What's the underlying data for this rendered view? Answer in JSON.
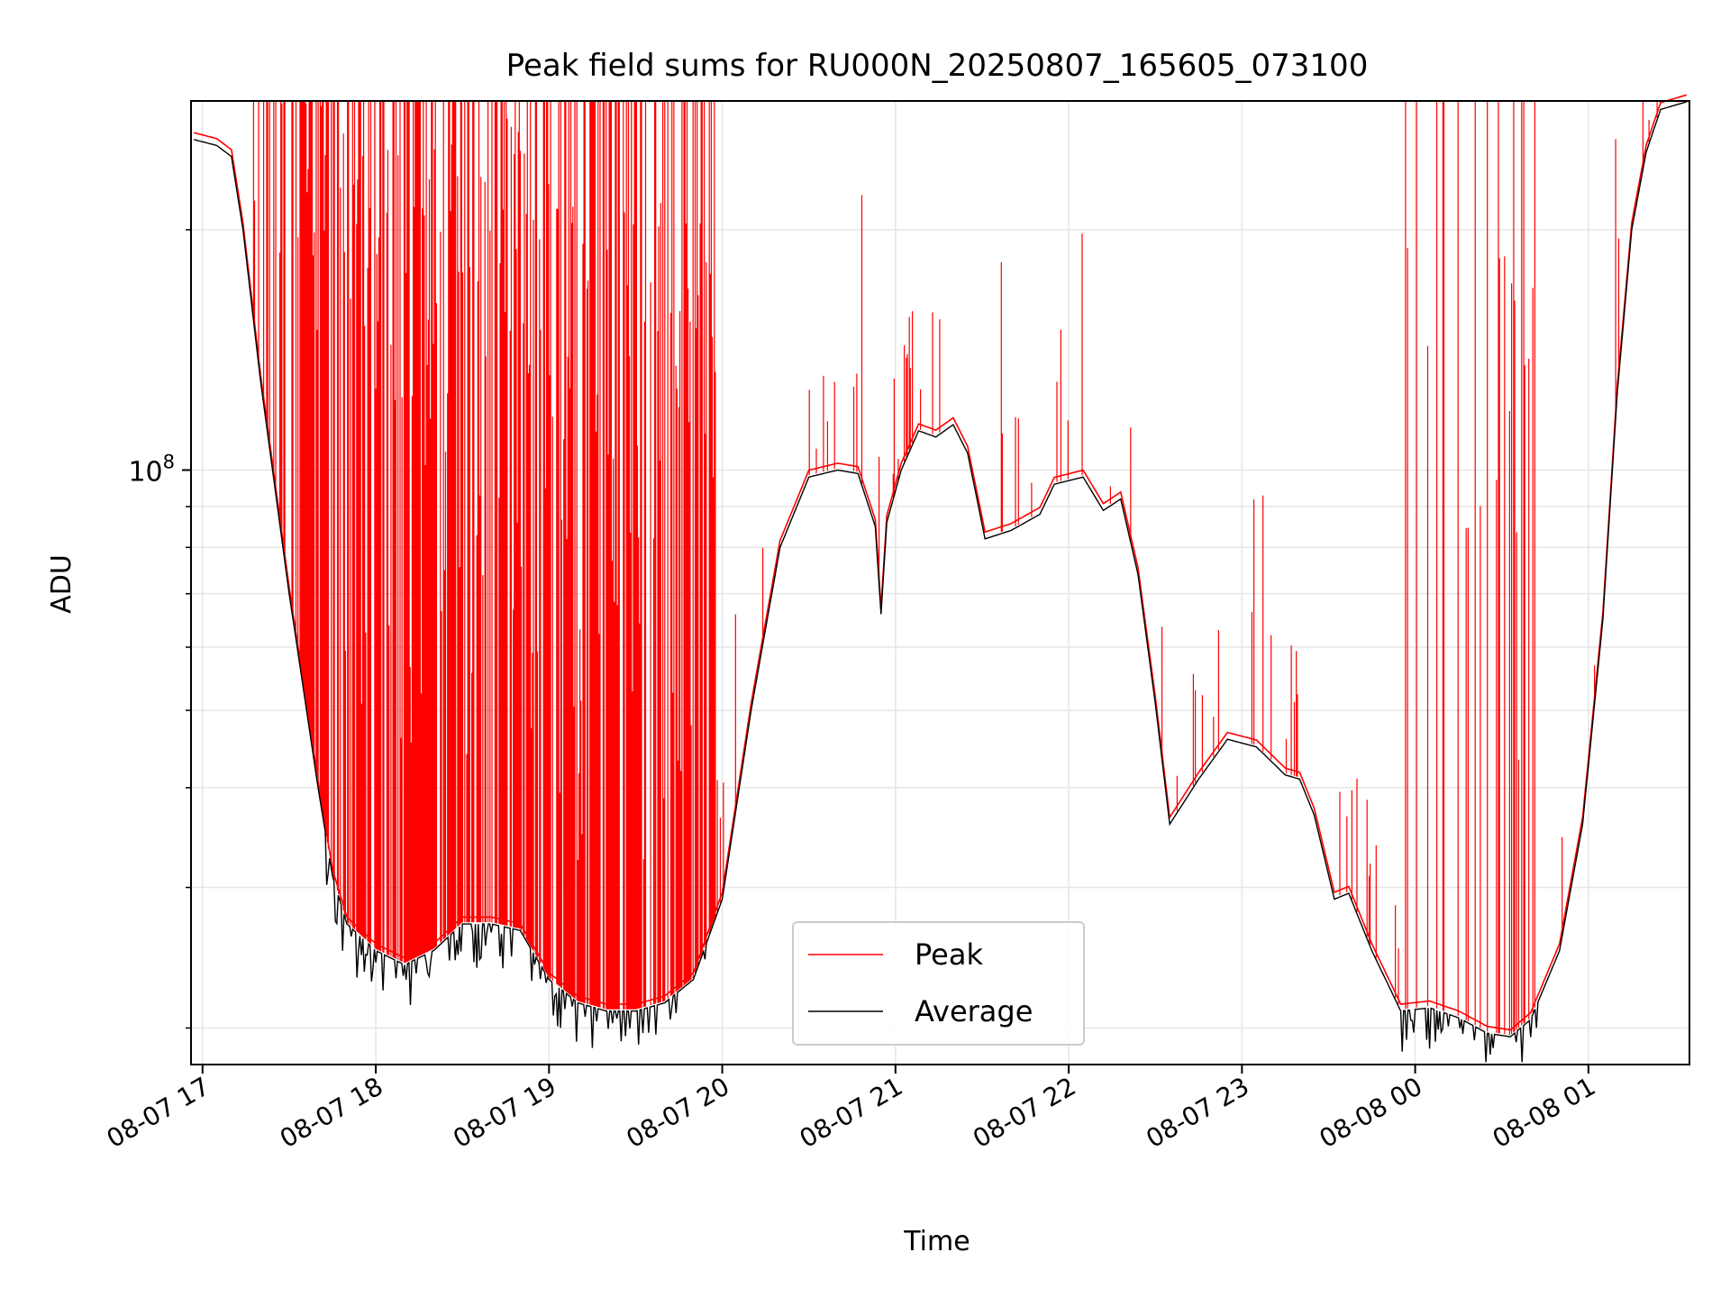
{
  "chart_data": {
    "type": "line",
    "title": "Peak field sums for RU000N_20250807_165605_073100",
    "xlabel": "Time",
    "ylabel": "ADU",
    "yscale": "log",
    "ylim": [
      18000000,
      290000000
    ],
    "xlim": [
      "2025-08-07 16:56",
      "2025-08-08 01:35"
    ],
    "grid": true,
    "legend": {
      "position": "lower-center"
    },
    "x_ticks": [
      {
        "t": "2025-08-07 17:00",
        "label": "08-07 17"
      },
      {
        "t": "2025-08-07 18:00",
        "label": "08-07 18"
      },
      {
        "t": "2025-08-07 19:00",
        "label": "08-07 19"
      },
      {
        "t": "2025-08-07 20:00",
        "label": "08-07 20"
      },
      {
        "t": "2025-08-07 21:00",
        "label": "08-07 21"
      },
      {
        "t": "2025-08-07 22:00",
        "label": "08-07 22"
      },
      {
        "t": "2025-08-07 23:00",
        "label": "08-07 23"
      },
      {
        "t": "2025-08-08 00:00",
        "label": "08-08 00"
      },
      {
        "t": "2025-08-08 01:00",
        "label": "08-08 01"
      }
    ],
    "y_major_ticks": [
      {
        "value": 100000000,
        "base": "10",
        "exp": "8"
      }
    ],
    "y_minor_ticks": [
      20000000,
      30000000,
      40000000,
      50000000,
      60000000,
      70000000,
      80000000,
      90000000,
      200000000
    ],
    "series": [
      {
        "name": "Average",
        "color": "#000000",
        "points": [
          [
            "2025-08-07 16:56",
            260000000
          ],
          [
            "2025-08-07 17:05",
            255000000
          ],
          [
            "2025-08-07 17:10",
            247000000
          ],
          [
            "2025-08-07 17:14",
            200000000
          ],
          [
            "2025-08-07 17:20",
            130000000
          ],
          [
            "2025-08-07 17:30",
            70000000
          ],
          [
            "2025-08-07 17:40",
            40000000
          ],
          [
            "2025-08-07 17:45",
            31000000
          ],
          [
            "2025-08-07 17:50",
            27000000
          ],
          [
            "2025-08-07 18:00",
            25000000
          ],
          [
            "2025-08-07 18:10",
            24000000
          ],
          [
            "2025-08-07 18:20",
            25000000
          ],
          [
            "2025-08-07 18:30",
            27000000
          ],
          [
            "2025-08-07 18:40",
            27000000
          ],
          [
            "2025-08-07 18:50",
            26500000
          ],
          [
            "2025-08-07 19:00",
            23000000
          ],
          [
            "2025-08-07 19:10",
            21500000
          ],
          [
            "2025-08-07 19:20",
            21000000
          ],
          [
            "2025-08-07 19:30",
            21000000
          ],
          [
            "2025-08-07 19:40",
            21500000
          ],
          [
            "2025-08-07 19:50",
            23000000
          ],
          [
            "2025-08-07 20:00",
            29000000
          ],
          [
            "2025-08-07 20:10",
            50000000
          ],
          [
            "2025-08-07 20:20",
            80000000
          ],
          [
            "2025-08-07 20:30",
            98000000
          ],
          [
            "2025-08-07 20:40",
            100000000
          ],
          [
            "2025-08-07 20:47",
            99000000
          ],
          [
            "2025-08-07 20:53",
            85000000
          ],
          [
            "2025-08-07 20:55",
            66000000
          ],
          [
            "2025-08-07 20:57",
            86000000
          ],
          [
            "2025-08-07 21:02",
            100000000
          ],
          [
            "2025-08-07 21:08",
            112000000
          ],
          [
            "2025-08-07 21:14",
            110000000
          ],
          [
            "2025-08-07 21:20",
            114000000
          ],
          [
            "2025-08-07 21:25",
            105000000
          ],
          [
            "2025-08-07 21:31",
            82000000
          ],
          [
            "2025-08-07 21:40",
            84000000
          ],
          [
            "2025-08-07 21:50",
            88000000
          ],
          [
            "2025-08-07 21:55",
            96000000
          ],
          [
            "2025-08-07 22:05",
            98000000
          ],
          [
            "2025-08-07 22:12",
            89000000
          ],
          [
            "2025-08-07 22:18",
            92000000
          ],
          [
            "2025-08-07 22:24",
            74000000
          ],
          [
            "2025-08-07 22:30",
            51000000
          ],
          [
            "2025-08-07 22:35",
            36000000
          ],
          [
            "2025-08-07 22:45",
            41000000
          ],
          [
            "2025-08-07 22:55",
            46000000
          ],
          [
            "2025-08-07 23:05",
            45000000
          ],
          [
            "2025-08-07 23:15",
            41500000
          ],
          [
            "2025-08-07 23:20",
            41000000
          ],
          [
            "2025-08-07 23:25",
            37000000
          ],
          [
            "2025-08-07 23:32",
            29000000
          ],
          [
            "2025-08-07 23:37",
            29500000
          ],
          [
            "2025-08-07 23:45",
            25000000
          ],
          [
            "2025-08-07 23:55",
            21000000
          ],
          [
            "2025-08-08 00:05",
            21200000
          ],
          [
            "2025-08-08 00:15",
            20600000
          ],
          [
            "2025-08-08 00:25",
            19700000
          ],
          [
            "2025-08-08 00:33",
            19500000
          ],
          [
            "2025-08-08 00:40",
            20500000
          ],
          [
            "2025-08-08 00:50",
            25000000
          ],
          [
            "2025-08-08 00:58",
            36000000
          ],
          [
            "2025-08-08 01:05",
            65000000
          ],
          [
            "2025-08-08 01:10",
            125000000
          ],
          [
            "2025-08-08 01:15",
            200000000
          ],
          [
            "2025-08-08 01:20",
            250000000
          ],
          [
            "2025-08-08 01:25",
            283000000
          ],
          [
            "2025-08-08 01:35",
            290000000
          ]
        ]
      },
      {
        "name": "Peak",
        "color": "#ff0000",
        "notes": "Follows the average with frequent upward spikes; dense spike clusters reach the top of the axis (>=2.9e8) during 17:15-19:55 and 23:55-00:40."
      }
    ]
  }
}
